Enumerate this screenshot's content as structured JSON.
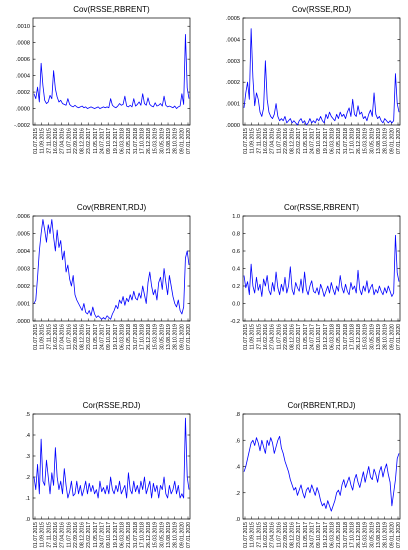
{
  "colors": {
    "line": "#0000ff",
    "axis": "#000000",
    "background": "#ffffff"
  },
  "chart_data": [
    {
      "type": "line",
      "title": "Cov(RSSE,RBRENT)",
      "xlabel": "",
      "ylabel": "",
      "ylim": [
        -0.0002,
        0.0011
      ],
      "yticks": [
        -0.0002,
        0.0,
        0.0002,
        0.0004,
        0.0006,
        0.0008,
        0.001
      ],
      "ytick_labels": [
        "-.0002",
        ".0000",
        ".0002",
        ".0004",
        ".0006",
        ".0008",
        ".0010"
      ],
      "x_tick_labels": [
        "01.07.2015",
        "11.09.2015",
        "27.11.2015",
        "16.02.2016",
        "27.04.2016",
        "11.07.2016",
        "22.09.2016",
        "08.12.2016",
        "23.02.2017",
        "11.05.2017",
        "24.07.2017",
        "09.10.2017",
        "19.12.2017",
        "06.03.2018",
        "21.05.2018",
        "31.07.2018",
        "17.10.2018",
        "26.12.2018",
        "15.03.2019",
        "30.05.2019",
        "13.08.2019",
        "28.10.2019",
        "09.01.2020",
        "07.01.2020"
      ],
      "series": [
        {
          "values": [
            0.00018,
            0.00012,
            0.00026,
            8e-05,
            0.00055,
            0.00028,
            0.0001,
            6e-05,
            8e-05,
            0.00016,
            0.00012,
            0.00046,
            0.00024,
            0.00014,
            8e-05,
            0.0001,
            6e-05,
            5e-05,
            4e-05,
            0.00012,
            5e-05,
            3e-05,
            2e-05,
            4e-05,
            2e-05,
            1e-05,
            2e-05,
            3e-05,
            1e-05,
            2e-05,
            0.0,
            1e-05,
            2e-05,
            1e-05,
            0.0,
            1e-05,
            2e-05,
            0.0,
            1e-05,
            2e-05,
            1e-05,
            2e-05,
            1e-05,
            0.00012,
            4e-05,
            2e-05,
            1e-05,
            3e-05,
            6e-05,
            4e-05,
            5e-05,
            0.00015,
            3e-05,
            2e-05,
            4e-05,
            2e-05,
            0.00012,
            3e-05,
            5e-05,
            8e-05,
            4e-05,
            0.00018,
            6e-05,
            4e-05,
            0.00013,
            5e-05,
            3e-05,
            2e-05,
            7e-05,
            3e-05,
            4e-05,
            6e-05,
            3e-05,
            0.00015,
            4e-05,
            2e-05,
            3e-05,
            2e-05,
            1e-05,
            3e-05,
            0.0,
            2e-05,
            3e-05,
            0.00018,
            5e-05,
            0.0009,
            0.00025,
            0.00012
          ]
        }
      ]
    },
    {
      "type": "line",
      "title": "Cov(RSSE,RDJ)",
      "xlabel": "",
      "ylabel": "",
      "ylim": [
        0.0,
        0.0005
      ],
      "yticks": [
        0.0,
        0.0001,
        0.0002,
        0.0003,
        0.0004,
        0.0005
      ],
      "ytick_labels": [
        ".0000",
        ".0001",
        ".0002",
        ".0003",
        ".0004",
        ".0005"
      ],
      "x_tick_labels": [
        "01.07.2015",
        "11.09.2015",
        "27.11.2015",
        "16.02.2016",
        "27.04.2016",
        "11.07.2016",
        "22.09.2016",
        "08.12.2016",
        "23.02.2017",
        "11.05.2017",
        "24.07.2017",
        "09.10.2017",
        "19.12.2017",
        "06.03.2018",
        "21.05.2018",
        "31.07.2018",
        "17.10.2018",
        "26.12.2018",
        "15.03.2019",
        "30.05.2019",
        "13.08.2019",
        "28.10.2019",
        "09.01.2020",
        "07.01.2020"
      ],
      "series": [
        {
          "values": [
            8e-05,
            0.00015,
            0.0002,
            0.00012,
            0.00045,
            0.00022,
            9e-05,
            0.00015,
            0.00012,
            6e-05,
            4e-05,
            8e-05,
            0.0003,
            0.00012,
            6e-05,
            4e-05,
            3e-05,
            5e-05,
            0.0001,
            4e-05,
            2e-05,
            3e-05,
            2e-05,
            4e-05,
            1e-05,
            2e-05,
            3e-05,
            1e-05,
            2e-05,
            1e-05,
            0.0,
            2e-05,
            3e-05,
            1e-05,
            2e-05,
            0.0,
            1e-05,
            3e-05,
            1e-05,
            2e-05,
            1e-05,
            3e-05,
            2e-05,
            4e-05,
            2e-05,
            1e-05,
            5e-05,
            3e-05,
            6e-05,
            4e-05,
            3e-05,
            2e-05,
            5e-05,
            3e-05,
            6e-05,
            4e-05,
            5e-05,
            3e-05,
            6e-05,
            8e-05,
            4e-05,
            0.00012,
            5e-05,
            4e-05,
            9e-05,
            5e-05,
            6e-05,
            3e-05,
            4e-05,
            2e-05,
            5e-05,
            7e-05,
            4e-05,
            0.00015,
            5e-05,
            3e-05,
            4e-05,
            2e-05,
            1e-05,
            3e-05,
            2e-05,
            1e-05,
            2e-05,
            1e-05,
            2e-05,
            0.00024,
            0.0001,
            6e-05
          ]
        }
      ]
    },
    {
      "type": "line",
      "title": "Cov(RBRENT,RDJ)",
      "xlabel": "",
      "ylabel": "",
      "ylim": [
        0.0,
        0.0006
      ],
      "yticks": [
        0.0,
        0.0001,
        0.0002,
        0.0003,
        0.0004,
        0.0005,
        0.0006
      ],
      "ytick_labels": [
        ".0000",
        ".0001",
        ".0002",
        ".0003",
        ".0004",
        ".0005",
        ".0006"
      ],
      "x_tick_labels": [
        "01.07.2015",
        "11.09.2015",
        "27.11.2015",
        "16.02.2016",
        "27.04.2016",
        "11.07.2016",
        "22.09.2016",
        "08.12.2016",
        "23.02.2017",
        "11.05.2017",
        "24.07.2017",
        "09.10.2017",
        "19.12.2017",
        "06.03.2018",
        "21.05.2018",
        "31.07.2018",
        "17.10.2018",
        "26.12.2018",
        "15.03.2019",
        "30.05.2019",
        "13.08.2019",
        "28.10.2019",
        "09.01.2020",
        "07.01.2020"
      ],
      "series": [
        {
          "values": [
            0.0001,
            0.00012,
            0.00025,
            0.0004,
            0.0005,
            0.00058,
            0.00052,
            0.00045,
            0.00055,
            0.0005,
            0.00058,
            0.00048,
            0.0004,
            0.00052,
            0.00042,
            0.00046,
            0.00035,
            0.0004,
            0.00028,
            0.00032,
            0.00024,
            0.0002,
            0.00026,
            0.00015,
            0.00012,
            0.0001,
            8e-05,
            6e-05,
            0.0001,
            5e-05,
            4e-05,
            6e-05,
            3e-05,
            8e-05,
            4e-05,
            2e-05,
            3e-05,
            2e-05,
            1e-05,
            2e-05,
            1e-05,
            3e-05,
            2e-05,
            1e-05,
            4e-05,
            6e-05,
            9e-05,
            7e-05,
            0.00012,
            0.0001,
            0.00014,
            9e-05,
            0.00013,
            0.00011,
            0.00015,
            0.00012,
            0.00017,
            0.00013,
            0.00012,
            0.00016,
            0.00013,
            0.0002,
            0.00015,
            0.0001,
            0.00022,
            0.00028,
            0.0002,
            0.00015,
            0.00018,
            0.00012,
            0.00022,
            0.00025,
            0.00018,
            0.0003,
            0.00022,
            0.00015,
            0.00026,
            0.0002,
            0.00014,
            0.0001,
            8e-05,
            0.00012,
            6e-05,
            4e-05,
            8e-05,
            0.00036,
            0.0004,
            0.00032
          ]
        }
      ]
    },
    {
      "type": "line",
      "title": "Cor(RSSE,RBRENT)",
      "xlabel": "",
      "ylabel": "",
      "ylim": [
        -0.2,
        1.0
      ],
      "yticks": [
        -0.2,
        0.0,
        0.2,
        0.4,
        0.6,
        0.8,
        1.0
      ],
      "ytick_labels": [
        "-0.2",
        "0.0",
        "0.2",
        "0.4",
        "0.6",
        "0.8",
        "1.0"
      ],
      "x_tick_labels": [
        "01.07.2015",
        "11.09.2015",
        "27.11.2015",
        "16.02.2016",
        "27.04.2016",
        "11.07.2016",
        "22.09.2016",
        "08.12.2016",
        "23.02.2017",
        "11.05.2017",
        "24.07.2017",
        "09.10.2017",
        "19.12.2017",
        "06.03.2018",
        "21.05.2018",
        "31.07.2018",
        "17.10.2018",
        "26.12.2018",
        "15.03.2019",
        "30.05.2019",
        "13.08.2019",
        "28.10.2019",
        "09.01.2020",
        "07.01.2020"
      ],
      "series": [
        {
          "values": [
            0.32,
            0.18,
            0.25,
            0.1,
            0.45,
            0.2,
            0.12,
            0.3,
            0.15,
            0.22,
            0.08,
            0.28,
            0.2,
            0.32,
            0.15,
            0.1,
            0.24,
            0.14,
            0.36,
            0.18,
            0.1,
            0.22,
            0.14,
            0.3,
            0.12,
            0.2,
            0.42,
            0.16,
            0.1,
            0.24,
            0.18,
            0.14,
            0.28,
            0.12,
            0.36,
            0.16,
            0.1,
            0.2,
            0.26,
            0.14,
            0.12,
            0.18,
            0.1,
            0.22,
            0.16,
            0.08,
            0.14,
            0.2,
            0.12,
            0.24,
            0.16,
            0.1,
            0.2,
            0.14,
            0.32,
            0.18,
            0.12,
            0.22,
            0.14,
            0.1,
            0.24,
            0.16,
            0.2,
            0.12,
            0.38,
            0.16,
            0.1,
            0.2,
            0.14,
            0.26,
            0.12,
            0.18,
            0.22,
            0.1,
            0.16,
            0.12,
            0.2,
            0.14,
            0.1,
            0.18,
            0.12,
            0.2,
            0.14,
            0.08,
            0.12,
            0.78,
            0.35,
            0.25
          ]
        }
      ]
    },
    {
      "type": "line",
      "title": "Cor(RSSE,RDJ)",
      "xlabel": "",
      "ylabel": "",
      "ylim": [
        0.0,
        0.5
      ],
      "yticks": [
        0.0,
        0.1,
        0.2,
        0.3,
        0.4,
        0.5
      ],
      "ytick_labels": [
        ".0",
        ".1",
        ".2",
        ".3",
        ".4",
        ".5"
      ],
      "x_tick_labels": [
        "01.07.2015",
        "11.09.2015",
        "27.11.2015",
        "16.02.2016",
        "27.04.2016",
        "11.07.2016",
        "22.09.2016",
        "08.12.2016",
        "23.02.2017",
        "11.05.2017",
        "24.07.2017",
        "09.10.2017",
        "19.12.2017",
        "06.03.2018",
        "21.05.2018",
        "31.07.2018",
        "17.10.2018",
        "26.12.2018",
        "15.03.2019",
        "30.05.2019",
        "13.08.2019",
        "28.10.2019",
        "09.01.2020",
        "07.01.2020"
      ],
      "series": [
        {
          "values": [
            0.2,
            0.14,
            0.26,
            0.12,
            0.38,
            0.18,
            0.16,
            0.28,
            0.2,
            0.12,
            0.22,
            0.16,
            0.34,
            0.2,
            0.14,
            0.18,
            0.12,
            0.24,
            0.16,
            0.1,
            0.13,
            0.18,
            0.11,
            0.12,
            0.18,
            0.12,
            0.16,
            0.11,
            0.14,
            0.18,
            0.12,
            0.17,
            0.13,
            0.16,
            0.12,
            0.14,
            0.1,
            0.18,
            0.13,
            0.15,
            0.12,
            0.16,
            0.12,
            0.2,
            0.14,
            0.12,
            0.16,
            0.13,
            0.18,
            0.12,
            0.14,
            0.16,
            0.1,
            0.22,
            0.14,
            0.12,
            0.18,
            0.13,
            0.16,
            0.12,
            0.18,
            0.14,
            0.2,
            0.12,
            0.15,
            0.18,
            0.1,
            0.17,
            0.13,
            0.16,
            0.1,
            0.16,
            0.14,
            0.2,
            0.12,
            0.1,
            0.16,
            0.12,
            0.14,
            0.18,
            0.12,
            0.16,
            0.1,
            0.12,
            0.1,
            0.48,
            0.2,
            0.14
          ]
        }
      ]
    },
    {
      "type": "line",
      "title": "Cor(RBRENT,RDJ)",
      "xlabel": "",
      "ylabel": "",
      "ylim": [
        0.0,
        0.8
      ],
      "yticks": [
        0.0,
        0.2,
        0.4,
        0.6,
        0.8
      ],
      "ytick_labels": [
        ".0",
        ".2",
        ".4",
        ".6",
        ".8"
      ],
      "x_tick_labels": [
        "01.07.2015",
        "11.09.2015",
        "27.11.2015",
        "16.02.2016",
        "27.04.2016",
        "11.07.2016",
        "22.09.2016",
        "08.12.2016",
        "23.02.2017",
        "11.05.2017",
        "24.07.2017",
        "09.10.2017",
        "19.12.2017",
        "06.03.2018",
        "21.05.2018",
        "31.07.2018",
        "17.10.2018",
        "26.12.2018",
        "15.03.2019",
        "30.05.2019",
        "13.08.2019",
        "28.10.2019",
        "09.01.2020",
        "07.01.2020"
      ],
      "series": [
        {
          "values": [
            0.36,
            0.4,
            0.46,
            0.52,
            0.58,
            0.6,
            0.56,
            0.62,
            0.58,
            0.52,
            0.6,
            0.55,
            0.5,
            0.6,
            0.56,
            0.62,
            0.58,
            0.5,
            0.55,
            0.6,
            0.63,
            0.54,
            0.5,
            0.44,
            0.4,
            0.36,
            0.3,
            0.26,
            0.22,
            0.24,
            0.18,
            0.22,
            0.26,
            0.2,
            0.16,
            0.22,
            0.24,
            0.2,
            0.26,
            0.22,
            0.18,
            0.24,
            0.2,
            0.14,
            0.1,
            0.12,
            0.08,
            0.14,
            0.1,
            0.06,
            0.1,
            0.14,
            0.2,
            0.22,
            0.18,
            0.26,
            0.3,
            0.24,
            0.28,
            0.32,
            0.26,
            0.22,
            0.3,
            0.34,
            0.28,
            0.24,
            0.3,
            0.36,
            0.28,
            0.34,
            0.4,
            0.32,
            0.3,
            0.38,
            0.34,
            0.28,
            0.36,
            0.4,
            0.32,
            0.38,
            0.42,
            0.34,
            0.28,
            0.1,
            0.2,
            0.3,
            0.46,
            0.5
          ]
        }
      ]
    }
  ]
}
